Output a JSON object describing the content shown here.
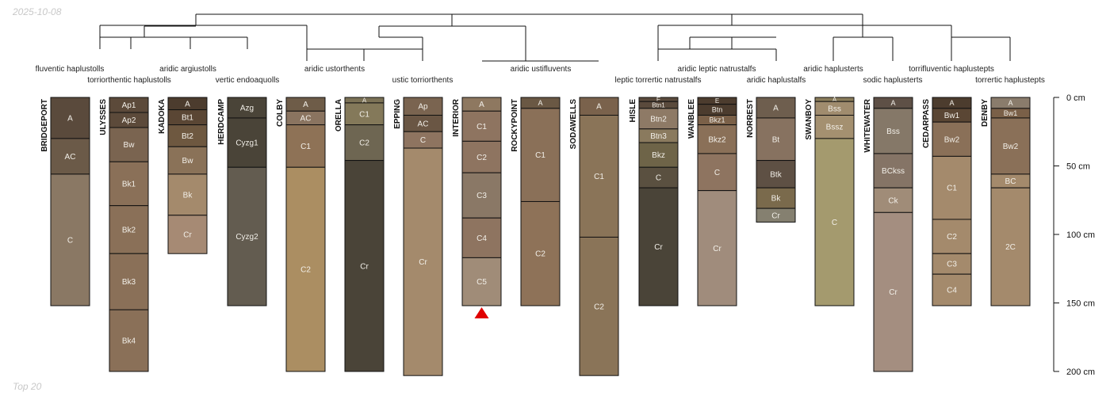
{
  "header": {
    "date": "2025-10-08",
    "footer": "Top 20"
  },
  "depth_axis": {
    "unit": "cm",
    "max": 200,
    "ticks": [
      {
        "value": 0,
        "label": "0 cm"
      },
      {
        "value": 50,
        "label": "50 cm"
      },
      {
        "value": 100,
        "label": "100 cm"
      },
      {
        "value": 150,
        "label": "150 cm"
      },
      {
        "value": 200,
        "label": "200 cm"
      }
    ]
  },
  "taxonomy_labels": [
    {
      "text": "fluventic haplustolls"
    },
    {
      "text": "torriorthentic haplustolls"
    },
    {
      "text": "aridic argiustolls"
    },
    {
      "text": "vertic endoaquolls"
    },
    {
      "text": "aridic ustorthents"
    },
    {
      "text": "ustic torriorthents"
    },
    {
      "text": "aridic ustifluvents"
    },
    {
      "text": "aridic leptic natrustalfs"
    },
    {
      "text": "leptic torrertic natrustalfs"
    },
    {
      "text": "aridic haplustalfs"
    },
    {
      "text": "aridic haplusterts"
    },
    {
      "text": "sodic haplusterts"
    },
    {
      "text": "torrifluventic haplustepts"
    },
    {
      "text": "torrertic haplustepts"
    }
  ],
  "profiles": [
    {
      "name": "BRIDGEPORT",
      "horizons": [
        {
          "name": "A",
          "top": 0,
          "bottom": 30,
          "color": "#5a4a3c"
        },
        {
          "name": "AC",
          "top": 30,
          "bottom": 56,
          "color": "#6b5a48"
        },
        {
          "name": "C",
          "top": 56,
          "bottom": 152,
          "color": "#8a7864"
        }
      ]
    },
    {
      "name": "ULYSSES",
      "horizons": [
        {
          "name": "Ap1",
          "top": 0,
          "bottom": 11,
          "color": "#5c4a3a"
        },
        {
          "name": "Ap2",
          "top": 11,
          "bottom": 22,
          "color": "#5c4a3a"
        },
        {
          "name": "Bw",
          "top": 22,
          "bottom": 47,
          "color": "#7a6450"
        },
        {
          "name": "Bk1",
          "top": 47,
          "bottom": 79,
          "color": "#8a7058"
        },
        {
          "name": "Bk2",
          "top": 79,
          "bottom": 114,
          "color": "#8a7058"
        },
        {
          "name": "Bk3",
          "top": 114,
          "bottom": 155,
          "color": "#8a7058"
        },
        {
          "name": "Bk4",
          "top": 155,
          "bottom": 200,
          "color": "#8a7058"
        }
      ]
    },
    {
      "name": "KADOKA",
      "horizons": [
        {
          "name": "A",
          "top": 0,
          "bottom": 9,
          "color": "#4c3c2e"
        },
        {
          "name": "Bt1",
          "top": 9,
          "bottom": 20,
          "color": "#5a4634"
        },
        {
          "name": "Bt2",
          "top": 20,
          "bottom": 36,
          "color": "#6e5840"
        },
        {
          "name": "Bw",
          "top": 36,
          "bottom": 56,
          "color": "#8a7258"
        },
        {
          "name": "Bk",
          "top": 56,
          "bottom": 86,
          "color": "#a48a6c"
        },
        {
          "name": "Cr",
          "top": 86,
          "bottom": 114,
          "color": "#a68a74"
        }
      ]
    },
    {
      "name": "HERDCAMP",
      "horizons": [
        {
          "name": "Azg",
          "top": 0,
          "bottom": 15,
          "color": "#4a4438"
        },
        {
          "name": "Cyzg1",
          "top": 15,
          "bottom": 51,
          "color": "#4a4438"
        },
        {
          "name": "Cyzg2",
          "top": 51,
          "bottom": 152,
          "color": "#635c50"
        }
      ]
    },
    {
      "name": "COLBY",
      "horizons": [
        {
          "name": "A",
          "top": 0,
          "bottom": 10,
          "color": "#6e5c48"
        },
        {
          "name": "AC",
          "top": 10,
          "bottom": 20,
          "color": "#8a7460"
        },
        {
          "name": "C1",
          "top": 20,
          "bottom": 51,
          "color": "#8e7256"
        },
        {
          "name": "C2",
          "top": 51,
          "bottom": 200,
          "color": "#ab8e62"
        }
      ]
    },
    {
      "name": "ORELLA",
      "horizons": [
        {
          "name": "A",
          "top": 0,
          "bottom": 4,
          "color": "#7c7256"
        },
        {
          "name": "C1",
          "top": 4,
          "bottom": 20,
          "color": "#84795a"
        },
        {
          "name": "C2",
          "top": 20,
          "bottom": 46,
          "color": "#6e6652"
        },
        {
          "name": "Cr",
          "top": 46,
          "bottom": 200,
          "color": "#4a4438"
        }
      ]
    },
    {
      "name": "EPPING",
      "horizons": [
        {
          "name": "Ap",
          "top": 0,
          "bottom": 13,
          "color": "#7a6450"
        },
        {
          "name": "AC",
          "top": 13,
          "bottom": 25,
          "color": "#6a5644"
        },
        {
          "name": "C",
          "top": 25,
          "bottom": 37,
          "color": "#8e7460"
        },
        {
          "name": "Cr",
          "top": 37,
          "bottom": 203,
          "color": "#a48a6c"
        }
      ]
    },
    {
      "name": "INTERIOR",
      "horizons": [
        {
          "name": "A",
          "top": 0,
          "bottom": 10,
          "color": "#8e7860"
        },
        {
          "name": "C1",
          "top": 10,
          "bottom": 32,
          "color": "#8e7460"
        },
        {
          "name": "C2",
          "top": 32,
          "bottom": 55,
          "color": "#8e7460"
        },
        {
          "name": "C3",
          "top": 55,
          "bottom": 88,
          "color": "#8a7866"
        },
        {
          "name": "C4",
          "top": 88,
          "bottom": 117,
          "color": "#8e7460"
        },
        {
          "name": "C5",
          "top": 117,
          "bottom": 152,
          "color": "#a08c78"
        }
      ],
      "marker": "truncated"
    },
    {
      "name": "ROCKYPOINT",
      "horizons": [
        {
          "name": "A",
          "top": 0,
          "bottom": 8,
          "color": "#6a5844"
        },
        {
          "name": "C1",
          "top": 8,
          "bottom": 76,
          "color": "#8a7058"
        },
        {
          "name": "C2",
          "top": 76,
          "bottom": 152,
          "color": "#8e7258"
        }
      ]
    },
    {
      "name": "SODAWELLS",
      "horizons": [
        {
          "name": "A",
          "top": 0,
          "bottom": 13,
          "color": "#7a624c"
        },
        {
          "name": "C1",
          "top": 13,
          "bottom": 102,
          "color": "#8a7458"
        },
        {
          "name": "C2",
          "top": 102,
          "bottom": 203,
          "color": "#8a7458"
        }
      ]
    },
    {
      "name": "HISLE",
      "horizons": [
        {
          "name": "E",
          "top": 0,
          "bottom": 3,
          "color": "#5a4a3c"
        },
        {
          "name": "Btn1",
          "top": 3,
          "bottom": 8,
          "color": "#5a4a3c"
        },
        {
          "name": "Btn2",
          "top": 8,
          "bottom": 23,
          "color": "#8e7a66"
        },
        {
          "name": "Btn3",
          "top": 23,
          "bottom": 33,
          "color": "#8a7a5e"
        },
        {
          "name": "Bkz",
          "top": 33,
          "bottom": 51,
          "color": "#6e6448"
        },
        {
          "name": "C",
          "top": 51,
          "bottom": 66,
          "color": "#5a5040"
        },
        {
          "name": "Cr",
          "top": 66,
          "bottom": 152,
          "color": "#4a4438"
        }
      ]
    },
    {
      "name": "WANBLEE",
      "horizons": [
        {
          "name": "E",
          "top": 0,
          "bottom": 5,
          "color": "#4c3c2e"
        },
        {
          "name": "Btn",
          "top": 5,
          "bottom": 13,
          "color": "#4c3c2e"
        },
        {
          "name": "Bkz1",
          "top": 13,
          "bottom": 20,
          "color": "#7a6048"
        },
        {
          "name": "Bkz2",
          "top": 20,
          "bottom": 41,
          "color": "#8a7058"
        },
        {
          "name": "C",
          "top": 41,
          "bottom": 68,
          "color": "#8e7460"
        },
        {
          "name": "Cr",
          "top": 68,
          "bottom": 152,
          "color": "#a08c7c"
        }
      ]
    },
    {
      "name": "NORREST",
      "horizons": [
        {
          "name": "A",
          "top": 0,
          "bottom": 15,
          "color": "#6e5e4e"
        },
        {
          "name": "Bt",
          "top": 15,
          "bottom": 46,
          "color": "#877260"
        },
        {
          "name": "Btk",
          "top": 46,
          "bottom": 66,
          "color": "#5e5044"
        },
        {
          "name": "Bk",
          "top": 66,
          "bottom": 81,
          "color": "#7a6a4c"
        },
        {
          "name": "Cr",
          "top": 81,
          "bottom": 91,
          "color": "#858070"
        }
      ]
    },
    {
      "name": "SWANBOY",
      "horizons": [
        {
          "name": "A",
          "top": 0,
          "bottom": 3,
          "color": "#8a7c5a"
        },
        {
          "name": "Bss",
          "top": 3,
          "bottom": 13,
          "color": "#a08c6e"
        },
        {
          "name": "Bssz",
          "top": 13,
          "bottom": 30,
          "color": "#a49070"
        },
        {
          "name": "C",
          "top": 30,
          "bottom": 152,
          "color": "#a49a6e"
        }
      ]
    },
    {
      "name": "WHITEWATER",
      "horizons": [
        {
          "name": "A",
          "top": 0,
          "bottom": 8,
          "color": "#5e5046"
        },
        {
          "name": "Bss",
          "top": 8,
          "bottom": 41,
          "color": "#857868"
        },
        {
          "name": "BCkss",
          "top": 41,
          "bottom": 66,
          "color": "#857466"
        },
        {
          "name": "Ck",
          "top": 66,
          "bottom": 84,
          "color": "#a08c78"
        },
        {
          "name": "Cr",
          "top": 84,
          "bottom": 200,
          "color": "#a48e80"
        }
      ]
    },
    {
      "name": "CEDARPASS",
      "horizons": [
        {
          "name": "A",
          "top": 0,
          "bottom": 8,
          "color": "#4c3c2e"
        },
        {
          "name": "Bw1",
          "top": 8,
          "bottom": 18,
          "color": "#5a4634"
        },
        {
          "name": "Bw2",
          "top": 18,
          "bottom": 43,
          "color": "#8a7058"
        },
        {
          "name": "C1",
          "top": 43,
          "bottom": 89,
          "color": "#a48a6c"
        },
        {
          "name": "C2",
          "top": 89,
          "bottom": 114,
          "color": "#a48a6c"
        },
        {
          "name": "C3",
          "top": 114,
          "bottom": 129,
          "color": "#a48a6c"
        },
        {
          "name": "C4",
          "top": 129,
          "bottom": 152,
          "color": "#a48a6c"
        }
      ]
    },
    {
      "name": "DENBY",
      "horizons": [
        {
          "name": "A",
          "top": 0,
          "bottom": 8,
          "color": "#8a7c6c"
        },
        {
          "name": "Bw1",
          "top": 8,
          "bottom": 15,
          "color": "#7a6048"
        },
        {
          "name": "Bw2",
          "top": 15,
          "bottom": 56,
          "color": "#8a7058"
        },
        {
          "name": "BC",
          "top": 56,
          "bottom": 66,
          "color": "#a48a6c"
        },
        {
          "name": "2C",
          "top": 66,
          "bottom": 152,
          "color": "#a48a6c"
        }
      ]
    }
  ]
}
